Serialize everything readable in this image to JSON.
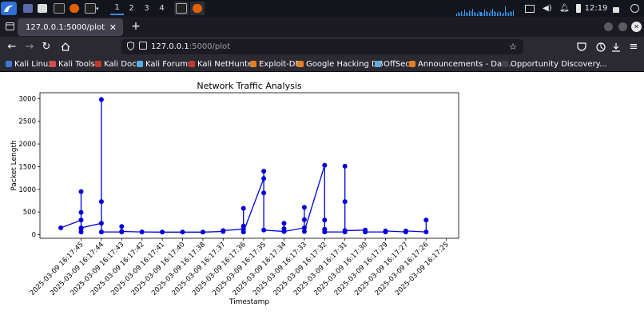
{
  "panel": {
    "workspaces": [
      "1",
      "2",
      "3",
      "4"
    ],
    "active_workspace": 0,
    "clock": "12:19"
  },
  "browser": {
    "tab_title": "127.0.0.1:5000/plot",
    "url_host": "127.0.0.1",
    "url_rest": ":5000/plot"
  },
  "bookmarks": [
    {
      "label": "Kali Linux",
      "color": "#3a7bd5"
    },
    {
      "label": "Kali Tools",
      "color": "#d94c4c"
    },
    {
      "label": "Kali Docs",
      "color": "#c0392b"
    },
    {
      "label": "Kali Forums",
      "color": "#5dade2"
    },
    {
      "label": "Kali NetHunter",
      "color": "#c0392b"
    },
    {
      "label": "Exploit-DB",
      "color": "#e67e22"
    },
    {
      "label": "Google Hacking DB",
      "color": "#e67e22"
    },
    {
      "label": "OffSec",
      "color": "#5dade2"
    },
    {
      "label": "Announcements - Das...",
      "color": "#e67e22"
    },
    {
      "label": "Opportunity Discovery...",
      "color": "#444444"
    }
  ],
  "chart_data": {
    "type": "line",
    "title": "Network Traffic Analysis",
    "xlabel": "Timestamp",
    "ylabel": "Packet Length",
    "ylim": [
      -80,
      3130
    ],
    "yticks": [
      0,
      500,
      1000,
      1500,
      2000,
      2500,
      3000
    ],
    "categories": [
      "2025-03-09 16:17:45",
      "2025-03-09 16:17:44",
      "2025-03-09 16:17:43",
      "2025-03-09 16:17:42",
      "2025-03-09 16:17:41",
      "2025-03-09 16:17:40",
      "2025-03-09 16:17:38",
      "2025-03-09 16:17:37",
      "2025-03-09 16:17:36",
      "2025-03-09 16:17:35",
      "2025-03-09 16:17:34",
      "2025-03-09 16:17:33",
      "2025-03-09 16:17:32",
      "2025-03-09 16:17:31",
      "2025-03-09 16:17:30",
      "2025-03-09 16:17:29",
      "2025-03-09 16:17:27",
      "2025-03-09 16:17:26",
      "2025-03-09 16:17:25"
    ],
    "color": "#0000dd",
    "points": [
      {
        "t": -1.0,
        "y": 150
      },
      {
        "t": 0,
        "y": 320
      },
      {
        "t": 0,
        "y": 950
      },
      {
        "t": 0,
        "y": 490
      },
      {
        "t": 0,
        "y": 130
      },
      {
        "t": 0,
        "y": 60
      },
      {
        "t": 0,
        "y": 150
      },
      {
        "t": 1,
        "y": 250
      },
      {
        "t": 1,
        "y": 2980
      },
      {
        "t": 1,
        "y": 730
      },
      {
        "t": 1,
        "y": 60
      },
      {
        "t": 2,
        "y": 60
      },
      {
        "t": 2,
        "y": 180
      },
      {
        "t": 2,
        "y": 70
      },
      {
        "t": 3,
        "y": 60
      },
      {
        "t": 4,
        "y": 55
      },
      {
        "t": 5,
        "y": 55
      },
      {
        "t": 6,
        "y": 55
      },
      {
        "t": 7,
        "y": 70
      },
      {
        "t": 7,
        "y": 90
      },
      {
        "t": 8,
        "y": 120
      },
      {
        "t": 8,
        "y": 580
      },
      {
        "t": 8,
        "y": 190
      },
      {
        "t": 8,
        "y": 60
      },
      {
        "t": 9,
        "y": 1240
      },
      {
        "t": 9,
        "y": 1400
      },
      {
        "t": 9,
        "y": 920
      },
      {
        "t": 9,
        "y": 100
      },
      {
        "t": 10,
        "y": 70
      },
      {
        "t": 10,
        "y": 250
      },
      {
        "t": 10,
        "y": 130
      },
      {
        "t": 10,
        "y": 70
      },
      {
        "t": 11,
        "y": 150
      },
      {
        "t": 11,
        "y": 600
      },
      {
        "t": 11,
        "y": 330
      },
      {
        "t": 11,
        "y": 70
      },
      {
        "t": 12,
        "y": 1530
      },
      {
        "t": 12,
        "y": 120
      },
      {
        "t": 12,
        "y": 320
      },
      {
        "t": 12,
        "y": 60
      },
      {
        "t": 13,
        "y": 60
      },
      {
        "t": 13,
        "y": 1510
      },
      {
        "t": 13,
        "y": 730
      },
      {
        "t": 13,
        "y": 90
      },
      {
        "t": 14,
        "y": 100
      },
      {
        "t": 14,
        "y": 60
      },
      {
        "t": 15,
        "y": 60
      },
      {
        "t": 15,
        "y": 80
      },
      {
        "t": 16,
        "y": 60
      },
      {
        "t": 16,
        "y": 80
      },
      {
        "t": 17,
        "y": 60
      },
      {
        "t": 17,
        "y": 320
      }
    ]
  }
}
